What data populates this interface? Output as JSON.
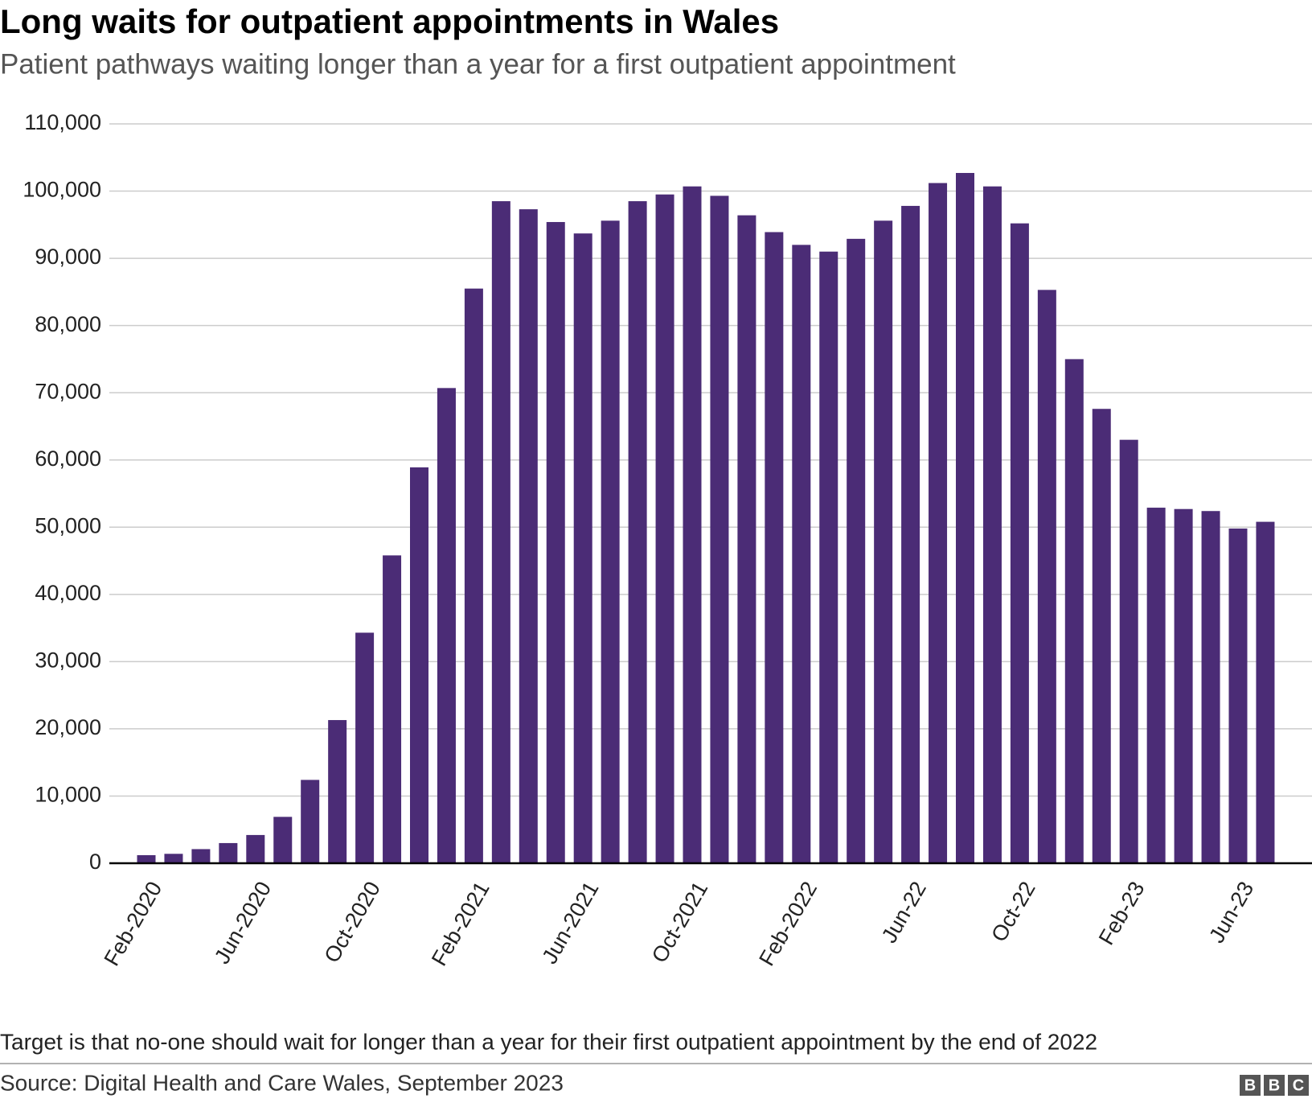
{
  "chart_data": {
    "type": "bar",
    "title": "Long waits for outpatient appointments in Wales",
    "subtitle": "Patient pathways waiting longer than a year for a first outpatient appointment",
    "note": "Target is that no-one should wait for longer than a year for their first outpatient appointment by the end of 2022",
    "source": "Source: Digital Health and Care Wales, September 2023",
    "categories": [
      "Feb-2020",
      null,
      null,
      null,
      "Jun-2020",
      null,
      null,
      null,
      "Oct-2020",
      null,
      null,
      null,
      "Feb-2021",
      null,
      null,
      null,
      "Jun-2021",
      null,
      null,
      null,
      "Oct-2021",
      null,
      null,
      null,
      "Feb-2022",
      null,
      null,
      null,
      "Jun-22",
      null,
      null,
      null,
      "Oct-22",
      null,
      null,
      null,
      "Feb-23",
      null,
      null,
      null,
      "Jun-23",
      null
    ],
    "values": [
      1200,
      1400,
      2100,
      3000,
      4200,
      6900,
      12400,
      21300,
      34300,
      45800,
      58900,
      70700,
      85500,
      98500,
      97300,
      95400,
      93700,
      95600,
      98500,
      99500,
      100700,
      99300,
      96400,
      93900,
      92000,
      91000,
      92900,
      95600,
      97800,
      101200,
      102700,
      100700,
      95200,
      85300,
      75000,
      67600,
      63000,
      52900,
      52700,
      52400,
      49800,
      50800
    ],
    "color": "#4b2c76",
    "ylim": [
      0,
      110000
    ],
    "yticks": [
      0,
      {
        "value": 10000,
        "label": "10,000"
      },
      {
        "value": 20000,
        "label": "20,000"
      },
      {
        "value": 30000,
        "label": "30,000"
      },
      {
        "value": 40000,
        "label": "40,000"
      },
      {
        "value": 50000,
        "label": "50,000"
      },
      {
        "value": 60000,
        "label": "60,000"
      },
      {
        "value": 70000,
        "label": "70,000"
      },
      {
        "value": 80000,
        "label": "80,000"
      },
      {
        "value": 90000,
        "label": "90,000"
      },
      {
        "value": 100000,
        "label": "100,000"
      },
      {
        "value": 110000,
        "label": "110,000"
      }
    ],
    "grid": true
  }
}
